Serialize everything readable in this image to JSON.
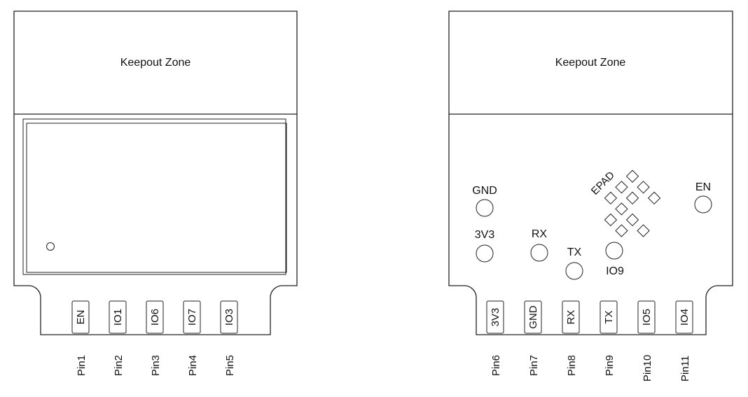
{
  "colors": {
    "stroke": "#222222",
    "text": "#111111",
    "background": "#ffffff"
  },
  "left_module": {
    "keepout_label": "Keepout Zone",
    "pads": [
      {
        "label": "EN"
      },
      {
        "label": "IO1"
      },
      {
        "label": "IO6"
      },
      {
        "label": "IO7"
      },
      {
        "label": "IO3"
      }
    ],
    "pins": [
      "Pin1",
      "Pin2",
      "Pin3",
      "Pin4",
      "Pin5"
    ]
  },
  "right_module": {
    "keepout_label": "Keepout Zone",
    "pads": [
      {
        "label": "3V3"
      },
      {
        "label": "GND"
      },
      {
        "label": "RX"
      },
      {
        "label": "TX"
      },
      {
        "label": "IO5"
      },
      {
        "label": "IO4"
      }
    ],
    "pins": [
      "Pin6",
      "Pin7",
      "Pin8",
      "Pin9",
      "Pin10",
      "Pin11"
    ],
    "test_points": {
      "gnd": "GND",
      "v3v3": "3V3",
      "rx": "RX",
      "tx": "TX",
      "io9": "IO9",
      "en": "EN",
      "epad": "EPAD"
    }
  }
}
